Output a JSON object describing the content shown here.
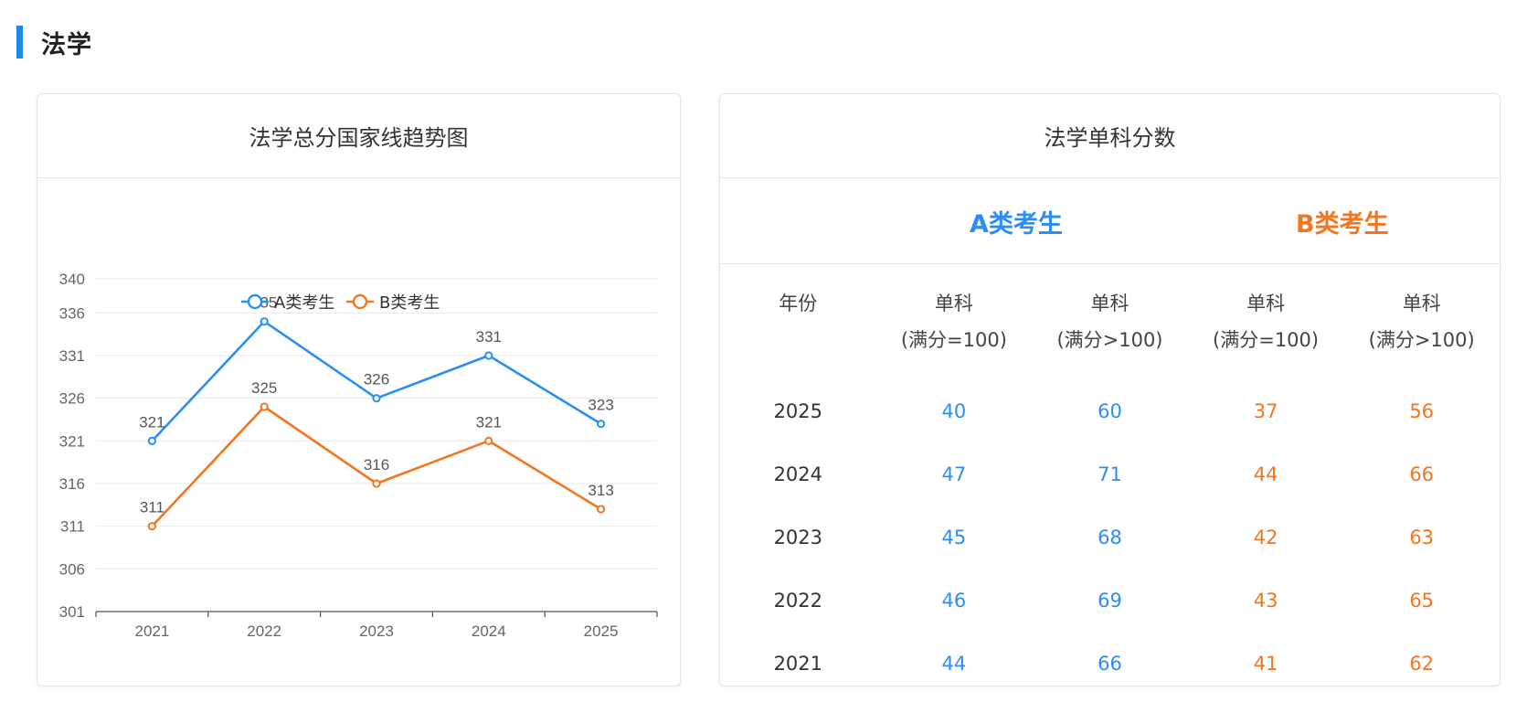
{
  "section": {
    "title": "法学"
  },
  "left_card": {
    "title": "法学总分国家线趋势图"
  },
  "right_card": {
    "title": "法学单科分数",
    "groups": {
      "a": "A类考生",
      "b": "B类考生"
    },
    "headers": {
      "year": "年份",
      "a_eq": {
        "line1": "单科",
        "line2": "(满分=100)"
      },
      "a_gt": {
        "line1": "单科",
        "line2": "(满分>100)"
      },
      "b_eq": {
        "line1": "单科",
        "line2": "(满分=100)"
      },
      "b_gt": {
        "line1": "单科",
        "line2": "(满分>100)"
      }
    },
    "rows": [
      {
        "year": "2025",
        "a_eq": "40",
        "a_gt": "60",
        "b_eq": "37",
        "b_gt": "56"
      },
      {
        "year": "2024",
        "a_eq": "47",
        "a_gt": "71",
        "b_eq": "44",
        "b_gt": "66"
      },
      {
        "year": "2023",
        "a_eq": "45",
        "a_gt": "68",
        "b_eq": "42",
        "b_gt": "63"
      },
      {
        "year": "2022",
        "a_eq": "46",
        "a_gt": "69",
        "b_eq": "43",
        "b_gt": "65"
      },
      {
        "year": "2021",
        "a_eq": "44",
        "a_gt": "66",
        "b_eq": "41",
        "b_gt": "62"
      }
    ]
  },
  "chart_data": {
    "type": "line",
    "title": "法学总分国家线趋势图",
    "categories": [
      "2021",
      "2022",
      "2023",
      "2024",
      "2025"
    ],
    "y_ticks": [
      301,
      306,
      311,
      316,
      321,
      326,
      331,
      336,
      340
    ],
    "ylim": [
      301,
      340
    ],
    "legend_position": "top-center",
    "grid": true,
    "series": [
      {
        "name": "A类考生",
        "color": "#2b8ef5",
        "values": [
          321,
          335,
          326,
          331,
          323
        ]
      },
      {
        "name": "B类考生",
        "color": "#f5751f",
        "values": [
          311,
          325,
          316,
          321,
          313
        ]
      }
    ]
  }
}
